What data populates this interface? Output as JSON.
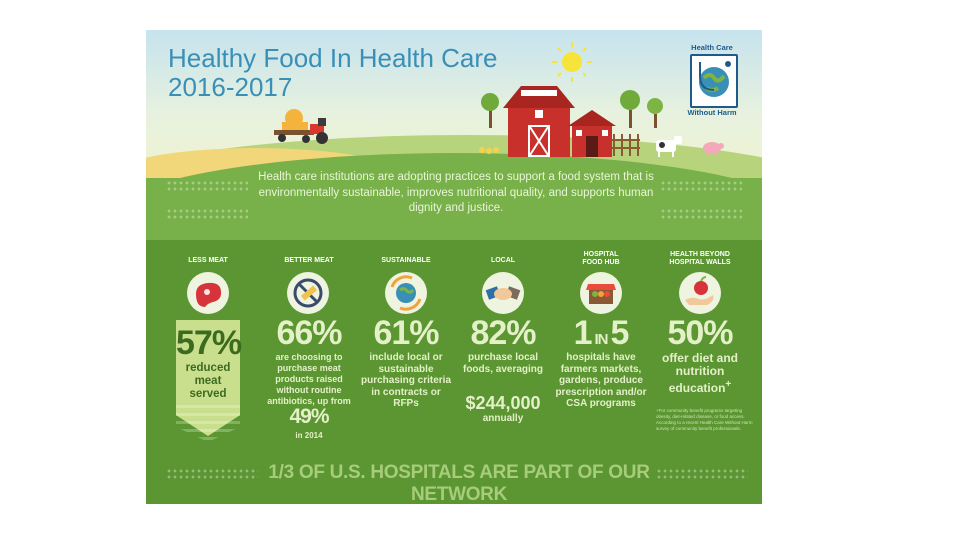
{
  "header": {
    "title_line1": "Healthy Food In Health Care",
    "title_line2": "2016-2017"
  },
  "logo": {
    "top_text": "Health Care",
    "bottom_text": "Without Harm",
    "icon": "globe-stethoscope-icon"
  },
  "intro": {
    "text": "Health care institutions are adopting practices to support a food system that is environmentally sustainable, improves nutritional quality, and supports human dignity and justice."
  },
  "columns": [
    {
      "heading": "LESS MEAT",
      "icon": "steak-icon",
      "value": "57%",
      "description": "reduced meat served"
    },
    {
      "heading": "BETTER MEAT",
      "icon": "no-antibiotics-syringe-icon",
      "value": "66%",
      "description": "are choosing to purchase meat products raised without routine antibiotics, up from",
      "previous_value": "49%",
      "previous_year": "in 2014"
    },
    {
      "heading": "SUSTAINABLE",
      "icon": "globe-recycle-icon",
      "value": "61%",
      "description": "include local or sustainable purchasing criteria in contracts or RFPs"
    },
    {
      "heading": "LOCAL",
      "icon": "handshake-icon",
      "value": "82%",
      "description": "purchase local foods, averaging",
      "amount": "$244,000",
      "amount_suffix": "annually"
    },
    {
      "heading_line1": "HOSPITAL",
      "heading_line2": "FOOD HUB",
      "icon": "produce-stand-icon",
      "value_num": "1",
      "value_in": "IN",
      "value_den": "5",
      "description": "hospitals have farmers markets, gardens, produce prescription and/or CSA programs"
    },
    {
      "heading_line1": "HEALTH BEYOND",
      "heading_line2": "HOSPITAL WALLS",
      "icon": "hand-apple-icon",
      "value": "50%",
      "description": "offer diet and nutrition education",
      "footnote_mark": "+"
    }
  ],
  "footnote": "+For community benefit programs targeting obesity, diet-related disease, or food access. According to a recent Health Care Without Harm survey of community benefit professionals.",
  "bottom_banner": "1/3 OF U.S. HOSPITALS ARE PART OF OUR NETWORK",
  "colors": {
    "poster_green": "#67a33d",
    "dark_green": "#5b9632",
    "title_blue": "#3a8fb7",
    "stat_text": "#e4f0c8",
    "barn_red": "#c8312b"
  }
}
